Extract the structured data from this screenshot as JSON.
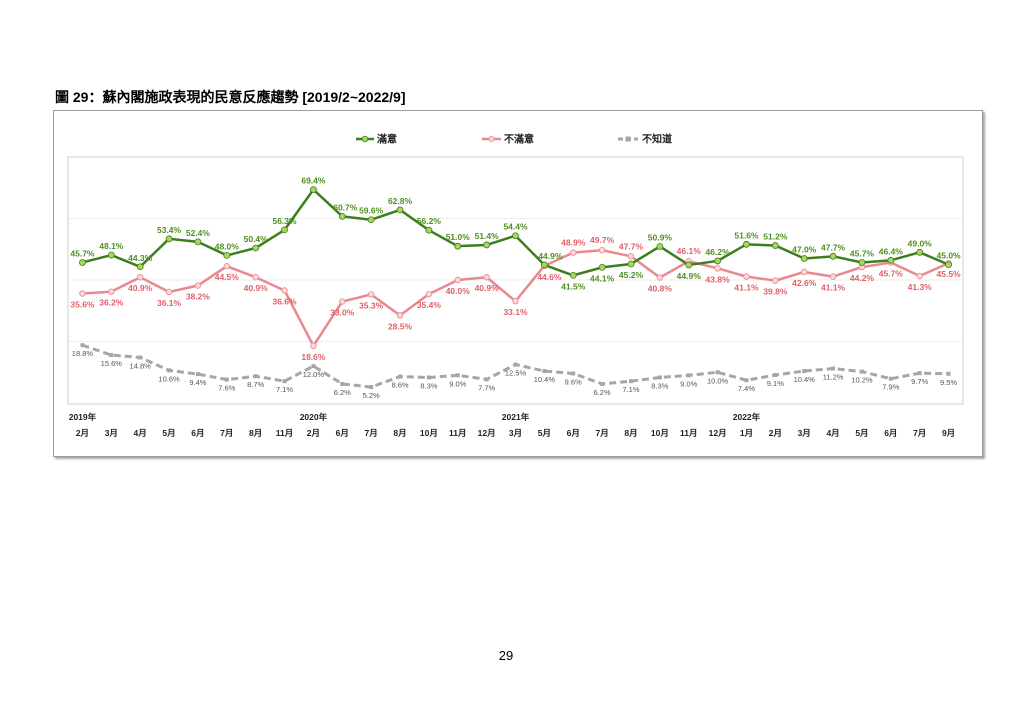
{
  "page": {
    "page_number": "29"
  },
  "chart_data": {
    "type": "line",
    "title": "圖 29：蘇內閣施政表現的民意反應趨勢 [2019/2~2022/9]",
    "categories": [
      "2月",
      "3月",
      "4月",
      "5月",
      "6月",
      "7月",
      "8月",
      "11月",
      "2月",
      "6月",
      "7月",
      "8月",
      "10月",
      "11月",
      "12月",
      "3月",
      "5月",
      "6月",
      "7月",
      "8月",
      "10月",
      "11月",
      "12月",
      "1月",
      "2月",
      "3月",
      "4月",
      "5月",
      "6月",
      "7月",
      "9月"
    ],
    "year_labels": [
      {
        "label": "2019年",
        "category_index": 0
      },
      {
        "label": "2020年",
        "category_index": 8
      },
      {
        "label": "2021年",
        "category_index": 15
      },
      {
        "label": "2022年",
        "category_index": 23
      }
    ],
    "value_suffix": "%",
    "ylim": [
      0,
      80
    ],
    "y_axis_labels_shown": false,
    "grid": "faint horizontal",
    "legend_position": "top-center",
    "series": [
      {
        "name": "滿意",
        "line_style": "solid",
        "color": "#3d7f1f",
        "marker_fill": "#a9d65b",
        "label_color": "#4f8f22",
        "values": [
          45.7,
          48.1,
          44.3,
          53.4,
          52.4,
          48.0,
          50.4,
          56.3,
          69.4,
          60.7,
          59.6,
          62.8,
          56.2,
          51.0,
          51.4,
          54.4,
          44.9,
          41.5,
          44.1,
          45.2,
          50.9,
          44.9,
          46.2,
          51.6,
          51.2,
          47.0,
          47.7,
          45.7,
          46.4,
          49.0,
          45.0
        ]
      },
      {
        "name": "不滿意",
        "line_style": "solid",
        "color": "#e8898f",
        "marker_fill": "#fbd7d9",
        "label_color": "#e0606a",
        "values": [
          35.6,
          36.2,
          40.9,
          36.1,
          38.2,
          44.5,
          40.9,
          36.6,
          18.6,
          33.0,
          35.3,
          28.5,
          35.4,
          40.0,
          40.9,
          33.1,
          44.6,
          48.9,
          49.7,
          47.7,
          40.8,
          46.1,
          43.8,
          41.1,
          39.8,
          42.6,
          41.1,
          44.2,
          45.7,
          41.3,
          45.5
        ]
      },
      {
        "name": "不知道",
        "line_style": "dashed",
        "color": "#a6a6a6",
        "marker_fill": "#a6a6a6",
        "label_color": "#555555",
        "values": [
          18.8,
          15.6,
          14.8,
          10.6,
          9.4,
          7.6,
          8.7,
          7.1,
          12.0,
          6.2,
          5.2,
          8.6,
          8.3,
          9.0,
          7.7,
          12.5,
          10.4,
          9.6,
          6.2,
          7.1,
          8.3,
          9.0,
          10.0,
          7.4,
          9.1,
          10.4,
          11.2,
          10.2,
          7.9,
          9.7,
          9.5
        ]
      }
    ]
  }
}
